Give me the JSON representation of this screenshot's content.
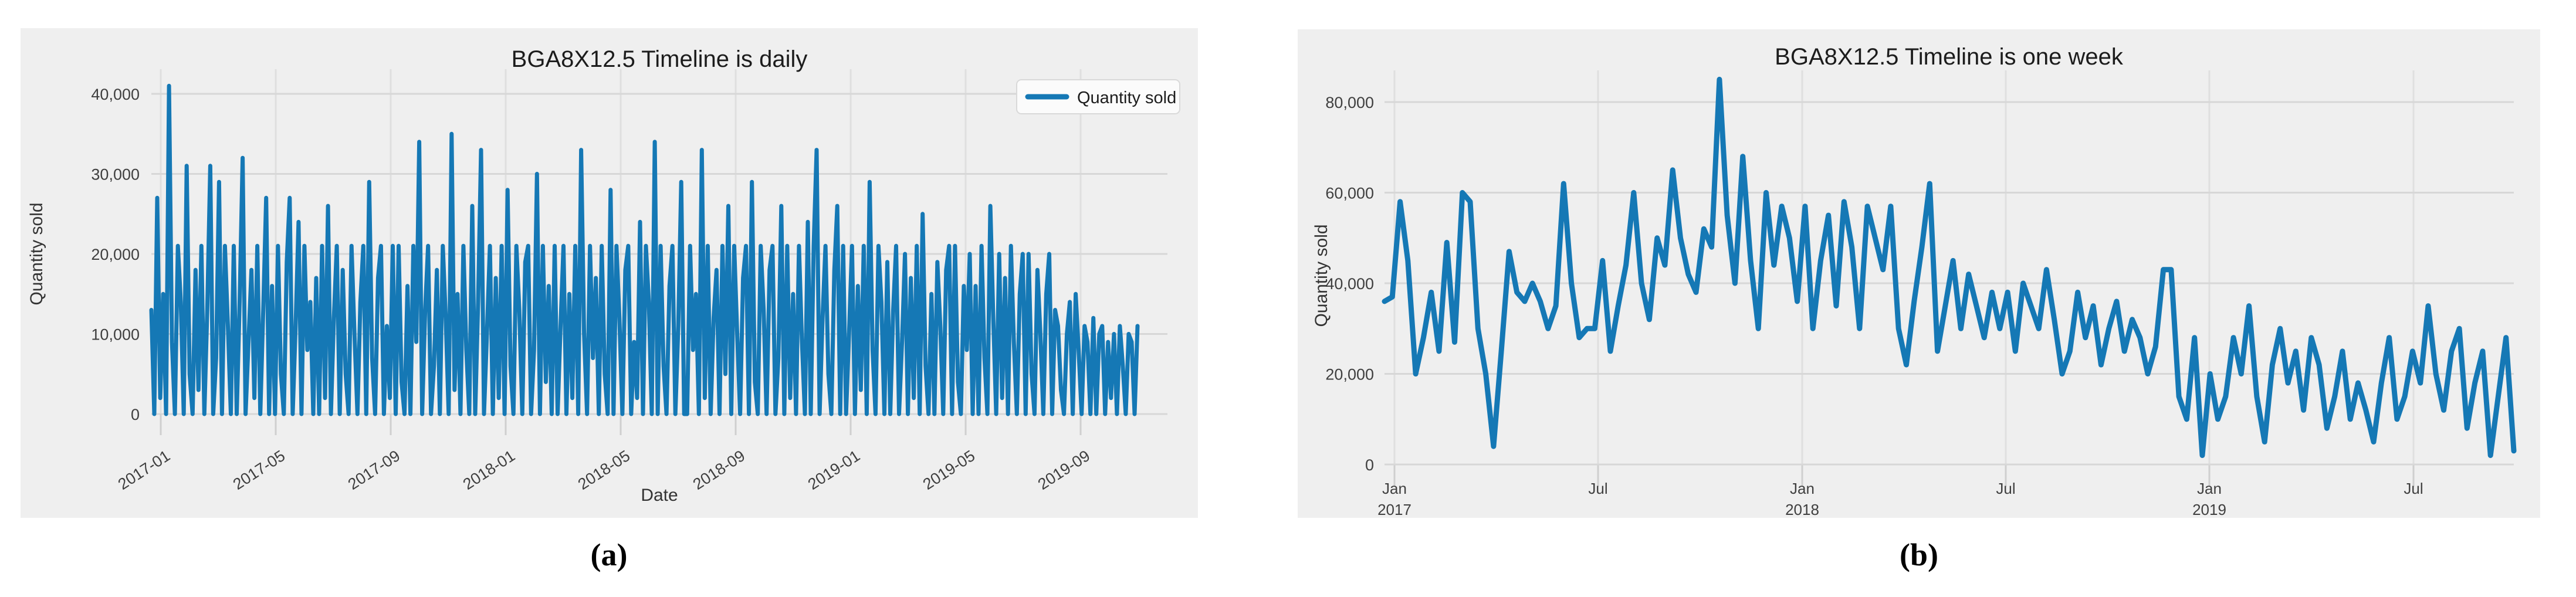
{
  "figure": {
    "captions": [
      "(a)",
      "(b)"
    ]
  },
  "colors": {
    "panel_bg": "#efefef",
    "grid": "#d7d7d7",
    "grid_vertical": "#dfdfdf",
    "tick_mark": "#cfcfcf",
    "line": "#1578b5",
    "tick_text": "#3f3f3f",
    "title_text": "#1c1c1c",
    "legend_bg": "#fbfbfb",
    "legend_border": "#d9d9d9"
  },
  "chart_data": [
    {
      "type": "line",
      "title": "BGA8X12.5 Timeline is daily",
      "xlabel": "Date",
      "ylabel": "Quantity sold",
      "legend": [
        "Quantity sold"
      ],
      "legend_position": "upper right",
      "grid": true,
      "ylim": [
        0,
        43000
      ],
      "y_tick_labels": [
        "0",
        "10,000",
        "20,000",
        "30,000",
        "40,000"
      ],
      "y_tick_values": [
        0,
        10000,
        20000,
        30000,
        40000
      ],
      "x_tick_labels": [
        "2017-01",
        "2017-05",
        "2017-09",
        "2018-01",
        "2018-05",
        "2018-09",
        "2019-01",
        "2019-05",
        "2019-09"
      ],
      "values": [
        13000,
        0,
        27000,
        2000,
        15000,
        0,
        41000,
        9000,
        0,
        21000,
        14000,
        0,
        31000,
        5000,
        0,
        18000,
        3000,
        21000,
        0,
        13000,
        31000,
        0,
        7000,
        29000,
        0,
        21000,
        11000,
        0,
        21000,
        0,
        14000,
        32000,
        0,
        9000,
        18000,
        2000,
        21000,
        0,
        13000,
        27000,
        0,
        16000,
        0,
        21000,
        5000,
        0,
        19000,
        27000,
        0,
        11000,
        24000,
        0,
        21000,
        8000,
        14000,
        0,
        17000,
        0,
        21000,
        2000,
        26000,
        0,
        12000,
        21000,
        0,
        18000,
        5000,
        0,
        21000,
        10000,
        0,
        14000,
        21000,
        0,
        29000,
        7000,
        0,
        17000,
        21000,
        0,
        11000,
        2000,
        21000,
        0,
        21000,
        4000,
        0,
        16000,
        0,
        21000,
        9000,
        34000,
        0,
        13000,
        21000,
        0,
        6000,
        18000,
        0,
        21000,
        12000,
        0,
        35000,
        3000,
        15000,
        0,
        21000,
        8000,
        0,
        26000,
        0,
        14000,
        33000,
        0,
        10000,
        21000,
        0,
        17000,
        2000,
        21000,
        0,
        28000,
        6000,
        0,
        21000,
        13000,
        0,
        19000,
        21000,
        0,
        8000,
        30000,
        0,
        21000,
        4000,
        16000,
        0,
        21000,
        0,
        11000,
        21000,
        0,
        15000,
        2000,
        21000,
        0,
        33000,
        10000,
        0,
        21000,
        7000,
        17000,
        0,
        21000,
        5000,
        0,
        28000,
        0,
        21000,
        12000,
        0,
        18000,
        21000,
        0,
        9000,
        2000,
        24000,
        0,
        21000,
        14000,
        0,
        34000,
        0,
        21000,
        6000,
        0,
        16000,
        21000,
        0,
        11000,
        29000,
        0,
        0,
        21000,
        8000,
        15000,
        0,
        33000,
        2000,
        21000,
        0,
        12000,
        18000,
        0,
        21000,
        5000,
        26000,
        0,
        21000,
        10000,
        0,
        17000,
        21000,
        0,
        29000,
        4000,
        0,
        21000,
        13000,
        0,
        18000,
        21000,
        0,
        7000,
        26000,
        0,
        21000,
        2000,
        15000,
        0,
        21000,
        9000,
        0,
        24000,
        0,
        21000,
        33000,
        0,
        12000,
        21000,
        5000,
        0,
        18000,
        26000,
        0,
        21000,
        0,
        10000,
        21000,
        0,
        16000,
        3000,
        21000,
        0,
        29000,
        8000,
        0,
        21000,
        14000,
        0,
        19000,
        0,
        13000,
        21000,
        0,
        9000,
        20000,
        0,
        17000,
        2000,
        21000,
        0,
        25000,
        6000,
        0,
        15000,
        0,
        19000,
        11000,
        0,
        18000,
        21000,
        0,
        21000,
        4000,
        0,
        16000,
        8000,
        20000,
        0,
        16000,
        0,
        21000,
        7000,
        0,
        26000,
        12000,
        0,
        20000,
        2000,
        17000,
        0,
        21000,
        9000,
        0,
        15000,
        20000,
        0,
        20000,
        5000,
        0,
        18000,
        10000,
        0,
        15000,
        20000,
        0,
        13000,
        11000,
        3000,
        0,
        10000,
        14000,
        0,
        15000,
        8000,
        0,
        11000,
        9000,
        0,
        12000,
        0,
        10000,
        11000,
        0,
        9000,
        2000,
        10000,
        0,
        11000,
        6000,
        0,
        10000,
        9000,
        0,
        11000
      ]
    },
    {
      "type": "line",
      "title": "BGA8X12.5 Timeline is one week",
      "xlabel": "",
      "ylabel": "Quantity sold",
      "legend": [],
      "grid": true,
      "ylim": [
        0,
        88000
      ],
      "y_tick_labels": [
        "0",
        "20,000",
        "40,000",
        "60,000",
        "80,000"
      ],
      "y_tick_values": [
        0,
        20000,
        40000,
        60000,
        80000
      ],
      "x_tick_labels": [
        [
          "Jan",
          "2017"
        ],
        [
          "Jul",
          ""
        ],
        [
          "Jan",
          "2018"
        ],
        [
          "Jul",
          ""
        ],
        [
          "Jan",
          "2019"
        ],
        [
          "Jul",
          ""
        ]
      ],
      "values": [
        36000,
        37000,
        58000,
        45000,
        20000,
        28000,
        38000,
        25000,
        49000,
        27000,
        60000,
        58000,
        30000,
        20000,
        4000,
        25000,
        47000,
        38000,
        36000,
        40000,
        36000,
        30000,
        35000,
        62000,
        40000,
        28000,
        30000,
        30000,
        45000,
        25000,
        35000,
        44000,
        60000,
        40000,
        32000,
        50000,
        44000,
        65000,
        50000,
        42000,
        38000,
        52000,
        48000,
        85000,
        55000,
        40000,
        68000,
        45000,
        30000,
        60000,
        44000,
        57000,
        50000,
        36000,
        57000,
        30000,
        45000,
        55000,
        35000,
        58000,
        48000,
        30000,
        57000,
        50000,
        43000,
        57000,
        30000,
        22000,
        36000,
        48000,
        62000,
        25000,
        35000,
        45000,
        30000,
        42000,
        35000,
        28000,
        38000,
        30000,
        38000,
        25000,
        40000,
        35000,
        30000,
        43000,
        32000,
        20000,
        25000,
        38000,
        28000,
        35000,
        22000,
        30000,
        36000,
        25000,
        32000,
        28000,
        20000,
        26000,
        43000,
        43000,
        15000,
        10000,
        28000,
        2000,
        20000,
        10000,
        15000,
        28000,
        20000,
        35000,
        15000,
        5000,
        22000,
        30000,
        18000,
        25000,
        12000,
        28000,
        22000,
        8000,
        15000,
        25000,
        10000,
        18000,
        12000,
        5000,
        18000,
        28000,
        10000,
        15000,
        25000,
        18000,
        35000,
        20000,
        12000,
        25000,
        30000,
        8000,
        18000,
        25000,
        2000,
        15000,
        28000,
        3000
      ]
    }
  ]
}
